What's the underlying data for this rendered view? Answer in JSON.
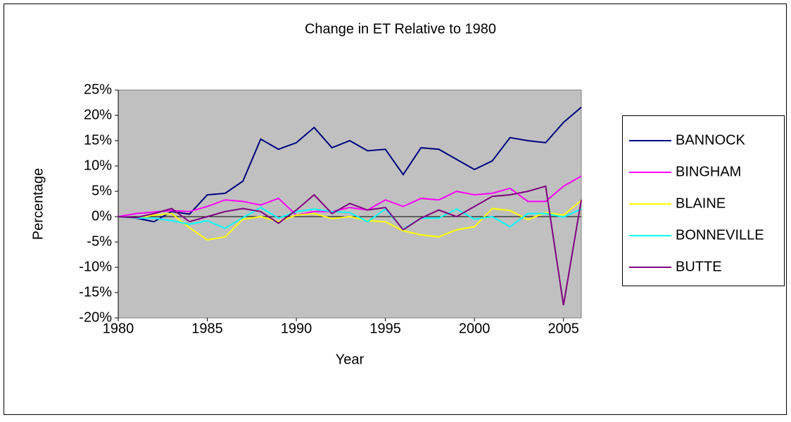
{
  "chart_data": {
    "type": "line",
    "title": "Change in ET Relative to 1980",
    "x_label": "Year",
    "y_label": "Percentage",
    "x": [
      1980,
      1981,
      1982,
      1983,
      1984,
      1985,
      1986,
      1987,
      1988,
      1989,
      1990,
      1991,
      1992,
      1993,
      1994,
      1995,
      1996,
      1997,
      1998,
      1999,
      2000,
      2001,
      2002,
      2003,
      2004,
      2005,
      2006
    ],
    "xlim": [
      1980,
      2006
    ],
    "xticks": [
      1980,
      1985,
      1990,
      1995,
      2000,
      2005
    ],
    "ylim": [
      -20,
      25
    ],
    "yticks": [
      {
        "value": -20,
        "label": "-20%"
      },
      {
        "value": -15,
        "label": "-15%"
      },
      {
        "value": -10,
        "label": "-10%"
      },
      {
        "value": -5,
        "label": "-5%"
      },
      {
        "value": 0,
        "label": "0%"
      },
      {
        "value": 5,
        "label": "5%"
      },
      {
        "value": 10,
        "label": "10%"
      },
      {
        "value": 15,
        "label": "15%"
      },
      {
        "value": 20,
        "label": "20%"
      },
      {
        "value": 25,
        "label": "25%"
      }
    ],
    "grid": false,
    "legend": "right",
    "series": [
      {
        "name": "BANNOCK",
        "color": "#000080",
        "values": [
          0,
          -0.3,
          -1,
          1,
          0.5,
          4.3,
          4.6,
          7,
          15.3,
          13.3,
          14.6,
          17.6,
          13.6,
          15,
          13,
          13.3,
          8.3,
          13.6,
          13.3,
          11.3,
          9.3,
          11,
          15.6,
          15,
          14.6,
          18.6,
          21.6
        ]
      },
      {
        "name": "BINGHAM",
        "color": "#ff00ff",
        "values": [
          0,
          0.6,
          0.9,
          1.2,
          1,
          2,
          3.3,
          3,
          2.3,
          3.6,
          0.3,
          1,
          1,
          1.8,
          1.3,
          3.3,
          2,
          3.6,
          3.3,
          5,
          4.3,
          4.6,
          5.6,
          3,
          3,
          6,
          8
        ]
      },
      {
        "name": "BLAINE",
        "color": "#ffff00",
        "values": [
          0,
          -0.3,
          0.3,
          0.6,
          -2.2,
          -4.6,
          -4,
          -0.5,
          0,
          -1,
          0.3,
          0.6,
          -0.4,
          0,
          -0.8,
          -1,
          -2.8,
          -3.6,
          -4,
          -2.6,
          -2,
          1.6,
          1.2,
          -0.6,
          0.8,
          0.3,
          3.2
        ]
      },
      {
        "name": "BONNEVILLE",
        "color": "#00ffff",
        "values": [
          0,
          -0.3,
          -0.3,
          -0.8,
          -1.5,
          -0.8,
          -2.3,
          -0.2,
          1.8,
          -0.3,
          1,
          1.5,
          1,
          0.8,
          -1,
          1.5,
          -2.5,
          -0.3,
          -0.3,
          1.5,
          -0.5,
          0,
          -2,
          0.6,
          0.6,
          -0.1,
          1.5
        ]
      },
      {
        "name": "BUTTE",
        "color": "#800080",
        "values": [
          0,
          -0.2,
          0.6,
          1.6,
          -1,
          0,
          1,
          1.6,
          1,
          -1.3,
          1.3,
          4.3,
          0.6,
          2.6,
          1.3,
          1.8,
          -2.6,
          -0.3,
          1.3,
          0,
          2,
          4,
          4.3,
          5,
          6,
          -17.5,
          3.3
        ]
      }
    ]
  }
}
